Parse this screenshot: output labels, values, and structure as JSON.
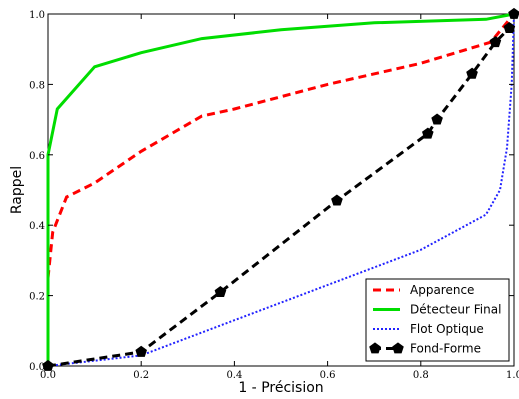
{
  "chart_data": {
    "type": "line",
    "xlabel": "1 - Précision",
    "ylabel": "Rappel",
    "xlim": [
      0,
      1
    ],
    "ylim": [
      0,
      1
    ],
    "x_ticks": [
      0.0,
      0.2,
      0.4,
      0.6,
      0.8,
      1.0
    ],
    "x_tick_labels": [
      "0.0",
      "0.2",
      "0.4",
      "0.6",
      "0.8",
      "1.0"
    ],
    "y_ticks": [
      0.0,
      0.2,
      0.4,
      0.6,
      0.8,
      1.0
    ],
    "y_tick_labels": [
      "0.0",
      "0.2",
      "0.4",
      "0.6",
      "0.8",
      "1.0"
    ],
    "grid": false,
    "legend_position": "lower-right",
    "series": [
      {
        "name": "Apparence",
        "color": "#ff0000",
        "style": "dashed",
        "marker": "none",
        "points": [
          [
            0.0,
            0.25
          ],
          [
            0.01,
            0.38
          ],
          [
            0.04,
            0.48
          ],
          [
            0.1,
            0.52
          ],
          [
            0.2,
            0.61
          ],
          [
            0.33,
            0.71
          ],
          [
            0.4,
            0.73
          ],
          [
            0.6,
            0.8
          ],
          [
            0.8,
            0.86
          ],
          [
            0.95,
            0.92
          ],
          [
            1.0,
            1.0
          ]
        ]
      },
      {
        "name": "Détecteur Final",
        "color": "#00dd00",
        "style": "solid",
        "marker": "none",
        "points": [
          [
            0.0,
            0.0
          ],
          [
            0.0,
            0.6
          ],
          [
            0.02,
            0.73
          ],
          [
            0.1,
            0.85
          ],
          [
            0.2,
            0.89
          ],
          [
            0.33,
            0.93
          ],
          [
            0.5,
            0.955
          ],
          [
            0.7,
            0.975
          ],
          [
            0.94,
            0.985
          ],
          [
            1.0,
            1.0
          ]
        ]
      },
      {
        "name": "Flot Optique",
        "color": "#2222ff",
        "style": "dotted",
        "marker": "none",
        "points": [
          [
            0.0,
            0.0
          ],
          [
            0.2,
            0.03
          ],
          [
            0.4,
            0.13
          ],
          [
            0.6,
            0.23
          ],
          [
            0.8,
            0.33
          ],
          [
            0.94,
            0.43
          ],
          [
            0.97,
            0.5
          ],
          [
            0.985,
            0.62
          ],
          [
            0.995,
            0.8
          ],
          [
            1.0,
            1.0
          ]
        ]
      },
      {
        "name": "Fond-Forme",
        "color": "#000000",
        "style": "dashed",
        "marker": "pentagon",
        "points": [
          [
            0.0,
            0.0
          ],
          [
            0.2,
            0.04
          ],
          [
            0.37,
            0.21
          ],
          [
            0.62,
            0.47
          ],
          [
            0.815,
            0.66
          ],
          [
            0.835,
            0.7
          ],
          [
            0.91,
            0.83
          ],
          [
            0.96,
            0.92
          ],
          [
            0.99,
            0.96
          ],
          [
            1.0,
            1.0
          ]
        ]
      }
    ]
  }
}
